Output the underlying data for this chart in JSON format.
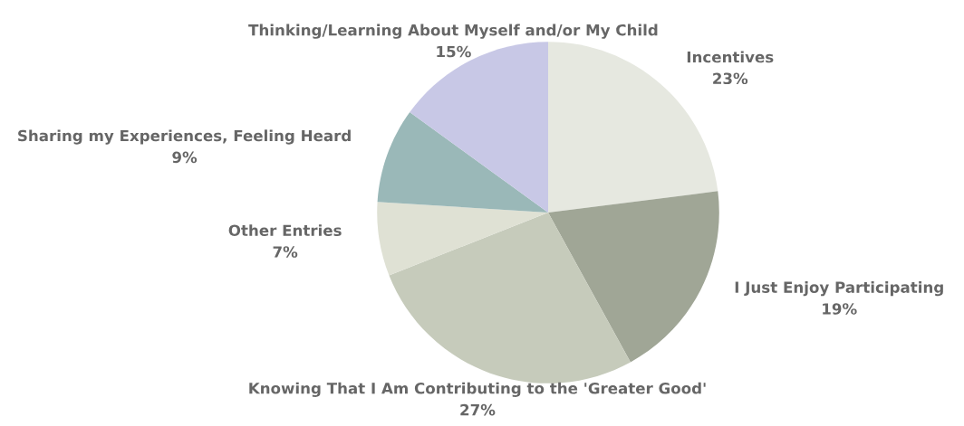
{
  "chart_data": {
    "type": "pie",
    "categories": [
      "Incentives",
      "I Just Enjoy Participating",
      "Knowing That I Am Contributing to the 'Greater Good'",
      "Other Entries",
      "Sharing my Experiences, Feeling Heard",
      "Thinking/Learning About Myself and/or My Child"
    ],
    "values": [
      23,
      19,
      27,
      7,
      9,
      15
    ],
    "colors": [
      "#e6e8e0",
      "#a0a696",
      "#c6cbbb",
      "#dfe1d4",
      "#9ab8b8",
      "#c8c8e6"
    ],
    "value_labels": [
      "23%",
      "19%",
      "27%",
      "7%",
      "9%",
      "15%"
    ]
  }
}
